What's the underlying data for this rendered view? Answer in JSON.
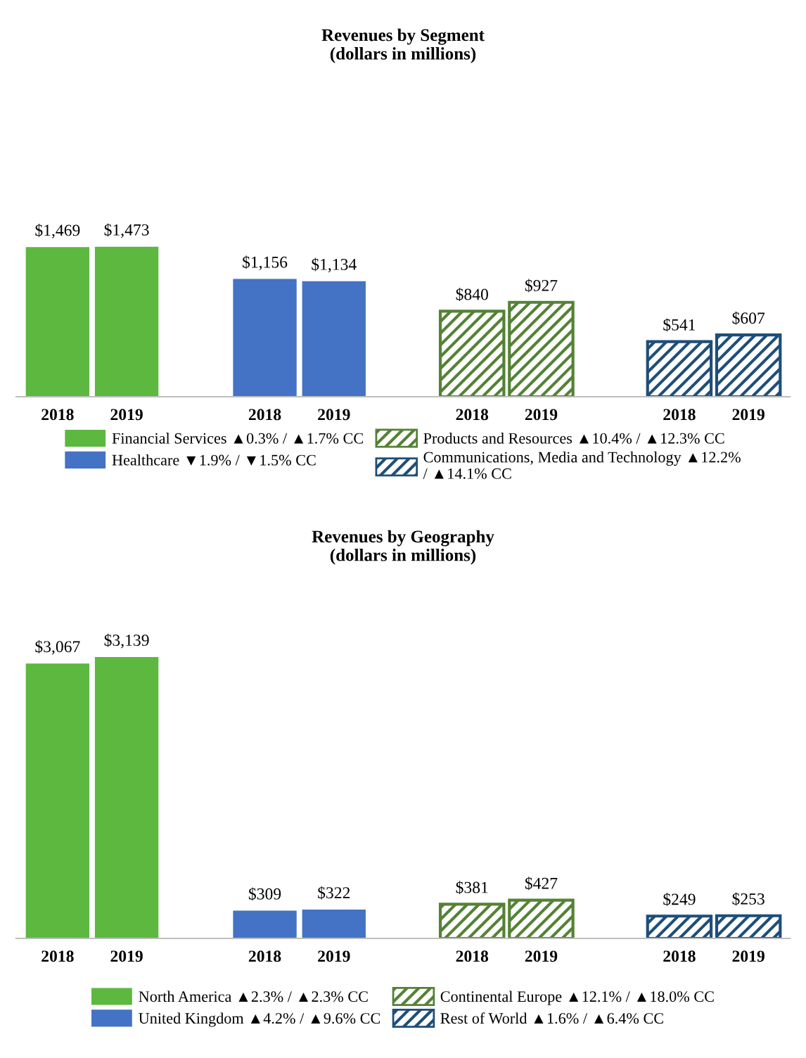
{
  "chart_data": [
    {
      "type": "bar",
      "title": "Revenues by Segment\n(dollars in millions)",
      "categories": [
        "2018",
        "2019",
        null,
        "2018",
        "2019",
        null,
        "2018",
        "2019",
        null,
        "2018",
        "2019"
      ],
      "legend": "bottom",
      "tick_labels": "x",
      "series": [
        {
          "name": "Financial Services ▲0.3% / ▲1.7% CC",
          "color": "#5cb83f",
          "values": [
            1469,
            1473,
            null,
            null,
            null,
            null,
            null,
            null,
            null,
            null,
            null
          ],
          "value_labels": [
            "$1,469",
            "$1,473",
            null,
            null,
            null,
            null,
            null,
            null,
            null,
            null,
            null
          ]
        },
        {
          "name": "Healthcare ▼1.9% / ▼1.5% CC",
          "color": "#4472c4",
          "values": [
            null,
            null,
            null,
            1156,
            1134,
            null,
            null,
            null,
            null,
            null,
            null
          ],
          "value_labels": [
            null,
            null,
            null,
            "$1,156",
            "$1,134",
            null,
            null,
            null,
            null,
            null,
            null
          ]
        },
        {
          "name": "Products and Resources ▲10.4% / ▲12.3% CC",
          "color": "#548235",
          "values": [
            null,
            null,
            null,
            null,
            null,
            null,
            840,
            927,
            null,
            null,
            null
          ],
          "value_labels": [
            null,
            null,
            null,
            null,
            null,
            null,
            "$840",
            "$927",
            null,
            null,
            null
          ]
        },
        {
          "name": "Communications, Media and Technology ▲12.2% / ▲14.1% CC",
          "color": "#1f4e79",
          "values": [
            null,
            null,
            null,
            null,
            null,
            null,
            null,
            null,
            null,
            541,
            607
          ],
          "value_labels": [
            null,
            null,
            null,
            null,
            null,
            null,
            null,
            null,
            null,
            "$541",
            "$607"
          ]
        }
      ]
    },
    {
      "type": "bar",
      "title": "Revenues by Geography\n(dollars in millions)",
      "categories": [
        "2018",
        "2019",
        null,
        "2018",
        "2019",
        null,
        "2018",
        "2019",
        null,
        "2018",
        "2019"
      ],
      "legend": "bottom",
      "tick_labels": "x",
      "series": [
        {
          "name": "North America ▲2.3% / ▲2.3% CC",
          "color": "#5cb83f",
          "values": [
            3067,
            3139,
            null,
            null,
            null,
            null,
            null,
            null,
            null,
            null,
            null
          ],
          "value_labels": [
            "$3,067",
            "$3,139",
            null,
            null,
            null,
            null,
            null,
            null,
            null,
            null,
            null
          ]
        },
        {
          "name": "United Kingdom ▲4.2% / ▲9.6% CC",
          "color": "#4472c4",
          "values": [
            null,
            null,
            null,
            309,
            322,
            null,
            null,
            null,
            null,
            null,
            null
          ],
          "value_labels": [
            null,
            null,
            null,
            "$309",
            "$322",
            null,
            null,
            null,
            null,
            null,
            null
          ]
        },
        {
          "name": "Continental Europe ▲12.1% / ▲18.0% CC",
          "color": "#548235",
          "values": [
            null,
            null,
            null,
            null,
            null,
            null,
            381,
            427,
            null,
            null,
            null
          ],
          "value_labels": [
            null,
            null,
            null,
            null,
            null,
            null,
            "$381",
            "$427",
            null,
            null,
            null
          ]
        },
        {
          "name": "Rest of World ▲1.6% / ▲6.4% CC",
          "color": "#1f4e79",
          "values": [
            null,
            null,
            null,
            null,
            null,
            null,
            null,
            null,
            null,
            249,
            253
          ],
          "value_labels": [
            null,
            null,
            null,
            null,
            null,
            null,
            null,
            null,
            null,
            "$249",
            "$253"
          ]
        }
      ]
    }
  ]
}
